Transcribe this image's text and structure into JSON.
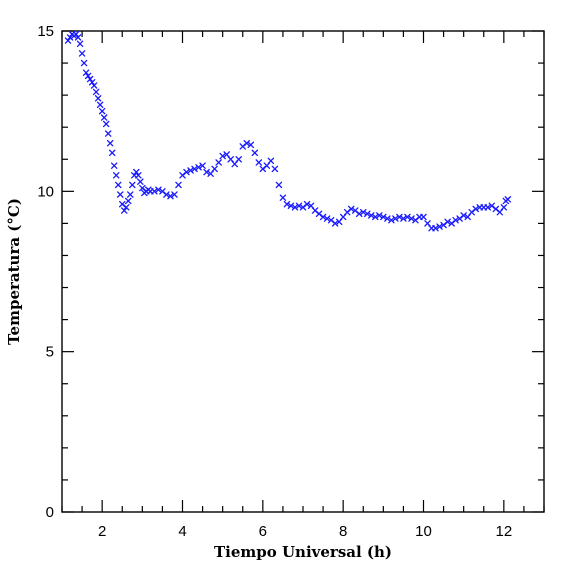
{
  "chart_data": {
    "type": "scatter",
    "marker": "x",
    "color": "#1a1aff",
    "xlabel": "Tiempo Universal (h)",
    "ylabel": "Temperatura (°C)",
    "xlim": [
      1.0,
      13.0
    ],
    "ylim": [
      0,
      15
    ],
    "xticks": [
      2,
      4,
      6,
      8,
      10,
      12
    ],
    "yticks": [
      0,
      5,
      10,
      15
    ],
    "grid": false,
    "series": [
      {
        "x": [
          1.15,
          1.2,
          1.25,
          1.3,
          1.35,
          1.4,
          1.45,
          1.5,
          1.55,
          1.6,
          1.65,
          1.7,
          1.75,
          1.8,
          1.85,
          1.9,
          1.95,
          2.0,
          2.05,
          2.1,
          2.15,
          2.2,
          2.25,
          2.3,
          2.35,
          2.4,
          2.45,
          2.5,
          2.55,
          2.6,
          2.65,
          2.7,
          2.75,
          2.8,
          2.85,
          2.9,
          2.95,
          3.0,
          3.05,
          3.1,
          3.15,
          3.2,
          3.3,
          3.4,
          3.5,
          3.6,
          3.7,
          3.8,
          3.9,
          4.0,
          4.1,
          4.2,
          4.3,
          4.4,
          4.5,
          4.6,
          4.7,
          4.8,
          4.9,
          5.0,
          5.1,
          5.2,
          5.3,
          5.4,
          5.5,
          5.6,
          5.7,
          5.8,
          5.9,
          6.0,
          6.1,
          6.2,
          6.3,
          6.4,
          6.5,
          6.6,
          6.7,
          6.8,
          6.9,
          7.0,
          7.1,
          7.2,
          7.3,
          7.4,
          7.5,
          7.6,
          7.7,
          7.8,
          7.9,
          8.0,
          8.1,
          8.2,
          8.3,
          8.4,
          8.5,
          8.6,
          8.7,
          8.8,
          8.9,
          9.0,
          9.1,
          9.2,
          9.3,
          9.4,
          9.5,
          9.6,
          9.7,
          9.8,
          9.9,
          10.0,
          10.1,
          10.2,
          10.3,
          10.4,
          10.5,
          10.6,
          10.7,
          10.8,
          10.9,
          11.0,
          11.1,
          11.2,
          11.3,
          11.4,
          11.5,
          11.6,
          11.7,
          11.8,
          11.9,
          12.0,
          12.05,
          12.1
        ],
        "y": [
          14.7,
          14.8,
          14.9,
          14.85,
          14.9,
          14.8,
          14.6,
          14.3,
          14.0,
          13.7,
          13.6,
          13.5,
          13.4,
          13.3,
          13.1,
          12.9,
          12.7,
          12.5,
          12.3,
          12.1,
          11.8,
          11.5,
          11.2,
          10.8,
          10.5,
          10.2,
          9.9,
          9.6,
          9.4,
          9.5,
          9.7,
          9.9,
          10.2,
          10.5,
          10.6,
          10.5,
          10.3,
          10.1,
          9.95,
          10.0,
          10.05,
          10.0,
          10.0,
          10.05,
          10.0,
          9.9,
          9.85,
          9.9,
          10.2,
          10.5,
          10.6,
          10.65,
          10.7,
          10.75,
          10.8,
          10.6,
          10.55,
          10.7,
          10.9,
          11.1,
          11.15,
          11.0,
          10.85,
          11.0,
          11.4,
          11.5,
          11.45,
          11.2,
          10.9,
          10.7,
          10.8,
          10.95,
          10.7,
          10.2,
          9.8,
          9.6,
          9.55,
          9.5,
          9.55,
          9.5,
          9.6,
          9.55,
          9.4,
          9.3,
          9.2,
          9.15,
          9.1,
          9.0,
          9.05,
          9.2,
          9.35,
          9.45,
          9.4,
          9.3,
          9.35,
          9.3,
          9.25,
          9.2,
          9.25,
          9.2,
          9.15,
          9.1,
          9.15,
          9.2,
          9.15,
          9.2,
          9.15,
          9.1,
          9.2,
          9.2,
          9.0,
          8.85,
          8.85,
          8.9,
          8.95,
          9.05,
          9.0,
          9.1,
          9.15,
          9.25,
          9.2,
          9.35,
          9.45,
          9.5,
          9.5,
          9.5,
          9.55,
          9.45,
          9.35,
          9.5,
          9.7,
          9.75
        ]
      }
    ]
  }
}
